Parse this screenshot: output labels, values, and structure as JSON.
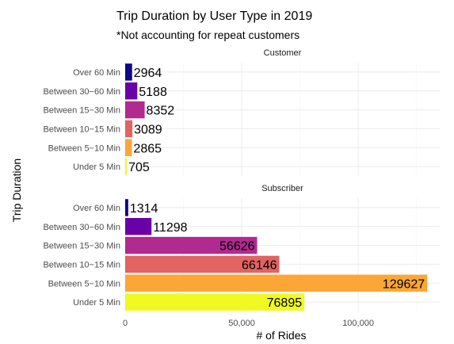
{
  "chart_data": {
    "type": "bar",
    "orientation": "horizontal",
    "title": "Trip Duration by User Type in 2019",
    "subtitle": "*Not accounting for repeat customers",
    "xlabel": "# of Rides",
    "ylabel": "Trip Duration",
    "xlim": [
      0,
      135000
    ],
    "xticks": [
      0,
      50000,
      100000
    ],
    "xtick_labels": [
      "0",
      "50,000",
      "100,000"
    ],
    "grid": true,
    "categories": [
      "Over 60 Min",
      "Between 30−60 Min",
      "Between 15−30 Min",
      "Between 10−15 Min",
      "Between 5−10 Min",
      "Under 5 Min"
    ],
    "colors": [
      "#0d0887",
      "#6a00a8",
      "#b12a90",
      "#e16462",
      "#fca636",
      "#f0f921"
    ],
    "facets": [
      {
        "name": "Customer",
        "values": [
          2964,
          5188,
          8352,
          3089,
          2865,
          705
        ]
      },
      {
        "name": "Subscriber",
        "values": [
          1314,
          11298,
          56626,
          66146,
          129627,
          76895
        ]
      }
    ]
  }
}
